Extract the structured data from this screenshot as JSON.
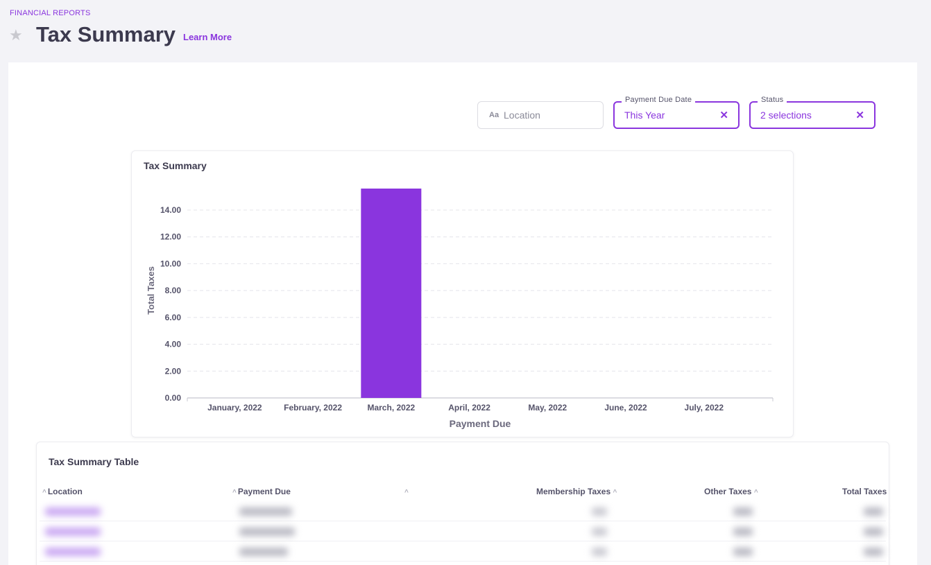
{
  "breadcrumb": "FINANCIAL REPORTS",
  "page_title": "Tax Summary",
  "learn_more": "Learn More",
  "filters": {
    "location": {
      "icon": "Aa",
      "placeholder": "Location"
    },
    "payment_due_date": {
      "label": "Payment Due Date",
      "value": "This Year"
    },
    "status": {
      "label": "Status",
      "value": "2 selections"
    },
    "clear_glyph": "✕"
  },
  "chart_card": {
    "title": "Tax Summary"
  },
  "chart_data": {
    "type": "bar",
    "categories": [
      "January, 2022",
      "February, 2022",
      "March, 2022",
      "April, 2022",
      "May, 2022",
      "June, 2022",
      "July, 2022"
    ],
    "values": [
      0,
      0,
      15.6,
      0,
      0,
      0,
      0
    ],
    "xlabel": "Payment Due",
    "ylabel": "Total Taxes",
    "ylim": [
      0,
      15.6
    ],
    "yticks": [
      "0.00",
      "2.00",
      "4.00",
      "6.00",
      "8.00",
      "10.00",
      "12.00",
      "14.00"
    ],
    "grid": true,
    "colors": {
      "bar": "#8a35de",
      "grid": "#e4e4ea",
      "axis": "#c8c8d0",
      "tick": "#55536a"
    }
  },
  "table": {
    "title": "Tax Summary Table",
    "columns": [
      "Location",
      "Payment Due",
      "",
      "Membership Taxes",
      "Other Taxes",
      "Total Taxes"
    ],
    "row_count": 3
  },
  "colors": {
    "accent": "#8a35de",
    "page_bg": "#f3f3f7"
  }
}
